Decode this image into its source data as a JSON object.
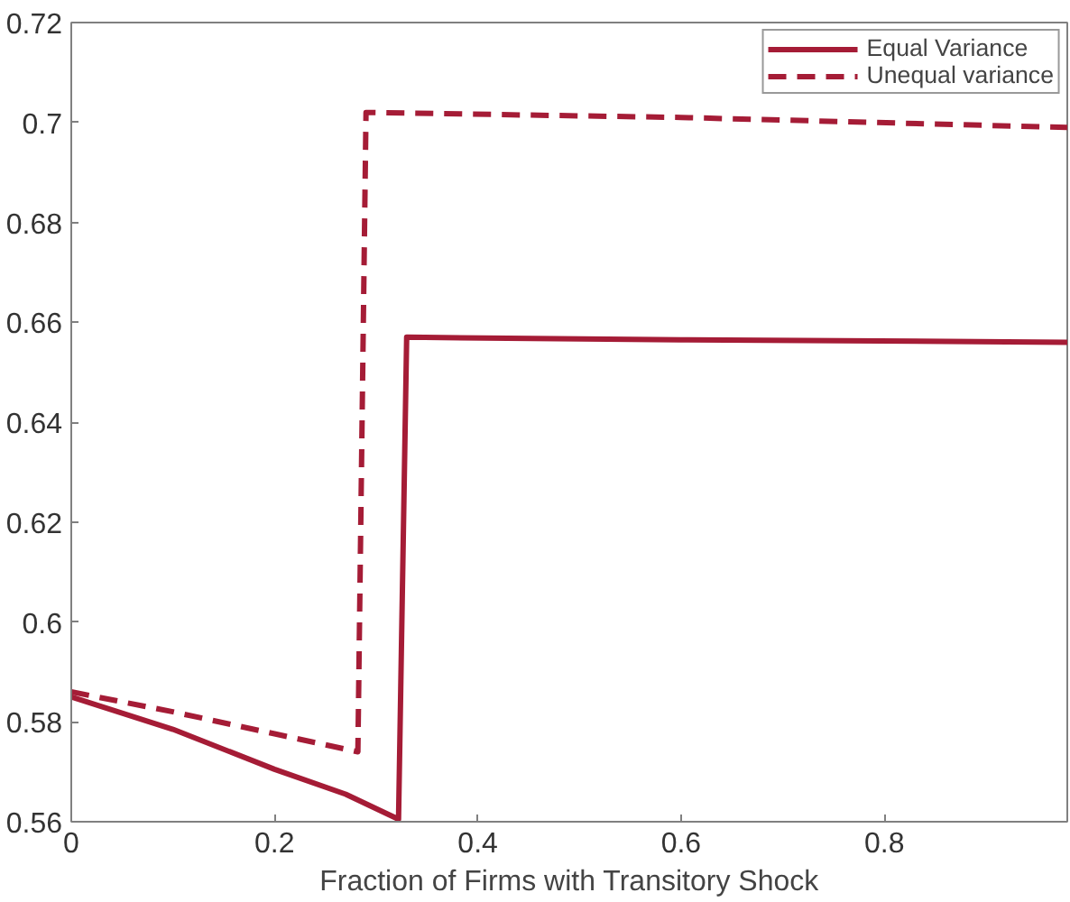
{
  "chart_data": {
    "type": "line",
    "xlabel": "Fraction of Firms with Transitory Shock",
    "xlim": [
      0,
      0.98
    ],
    "xticks": [
      0,
      0.2,
      0.4,
      0.6,
      0.8
    ],
    "ylim": [
      0.56,
      0.72
    ],
    "yticks": [
      0.56,
      0.58,
      0.6,
      0.62,
      0.64,
      0.66,
      0.68,
      0.7,
      0.72
    ],
    "grid": false,
    "legend": "top right",
    "series": [
      {
        "name": "Equal Variance",
        "color": "#a51c36",
        "line_style": "solid",
        "x": [
          0,
          0.1,
          0.2,
          0.27,
          0.322,
          0.33,
          0.6,
          0.98
        ],
        "values": [
          0.585,
          0.5785,
          0.5705,
          0.5655,
          0.5605,
          0.657,
          0.6565,
          0.656
        ]
      },
      {
        "name": "Unequal variance",
        "color": "#a51c36",
        "line_style": "dashed",
        "x": [
          0,
          0.1,
          0.2,
          0.282,
          0.29,
          0.6,
          0.98
        ],
        "values": [
          0.586,
          0.582,
          0.5776,
          0.574,
          0.702,
          0.701,
          0.699
        ]
      }
    ]
  }
}
